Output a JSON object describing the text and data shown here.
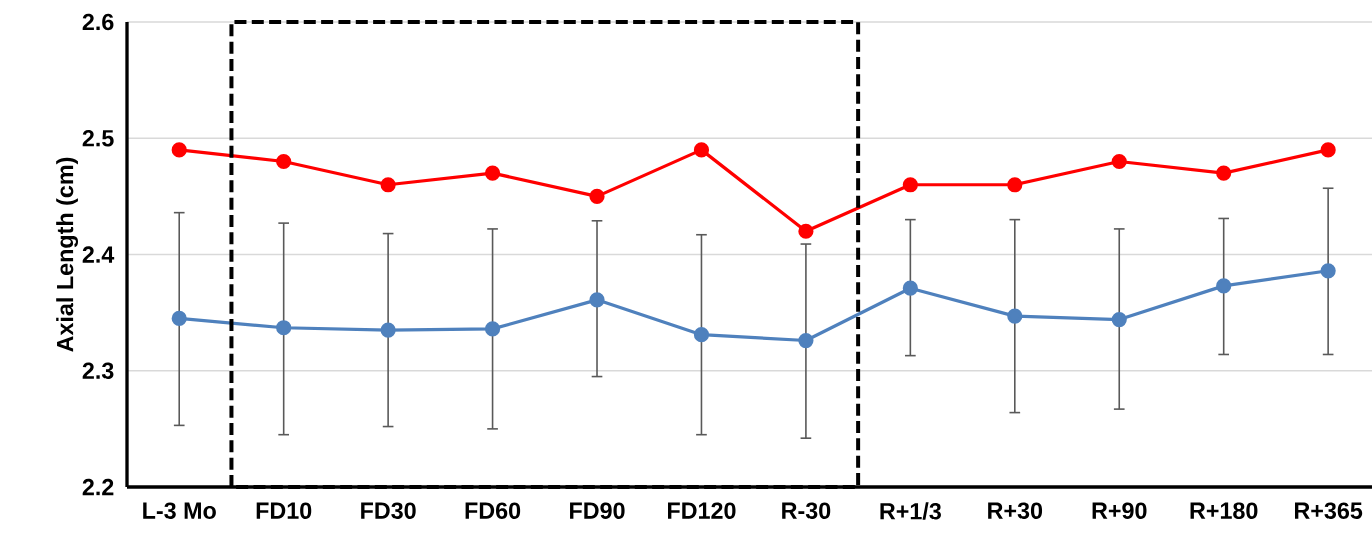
{
  "chart_data": {
    "type": "line",
    "ylabel": "Axial Length (cm)",
    "categories": [
      "L-3 Mo",
      "FD10",
      "FD30",
      "FD60",
      "FD90",
      "FD120",
      "R-30",
      "R+1/3",
      "R+30",
      "R+90",
      "R+180",
      "R+365"
    ],
    "series": [
      {
        "color": "#ff0000",
        "values": [
          2.49,
          2.48,
          2.46,
          2.47,
          2.45,
          2.49,
          2.42,
          2.46,
          2.46,
          2.48,
          2.47,
          2.49
        ]
      },
      {
        "color": "#4f81bd",
        "values": [
          2.345,
          2.337,
          2.335,
          2.336,
          2.361,
          2.331,
          2.326,
          2.371,
          2.347,
          2.344,
          2.373,
          2.386
        ],
        "errors": [
          [
            2.253,
            2.436
          ],
          [
            2.245,
            2.427
          ],
          [
            2.252,
            2.418
          ],
          [
            2.25,
            2.422
          ],
          [
            2.295,
            2.429
          ],
          [
            2.245,
            2.417
          ],
          [
            2.242,
            2.409
          ],
          [
            2.313,
            2.43
          ],
          [
            2.264,
            2.43
          ],
          [
            2.267,
            2.422
          ],
          [
            2.314,
            2.431
          ],
          [
            2.314,
            2.457
          ]
        ]
      }
    ],
    "ylim": [
      2.2,
      2.6
    ],
    "yticks": [
      2.2,
      2.3,
      2.4,
      2.5,
      2.6
    ],
    "grid": "y",
    "marker": "circle",
    "line_style": "solid"
  }
}
